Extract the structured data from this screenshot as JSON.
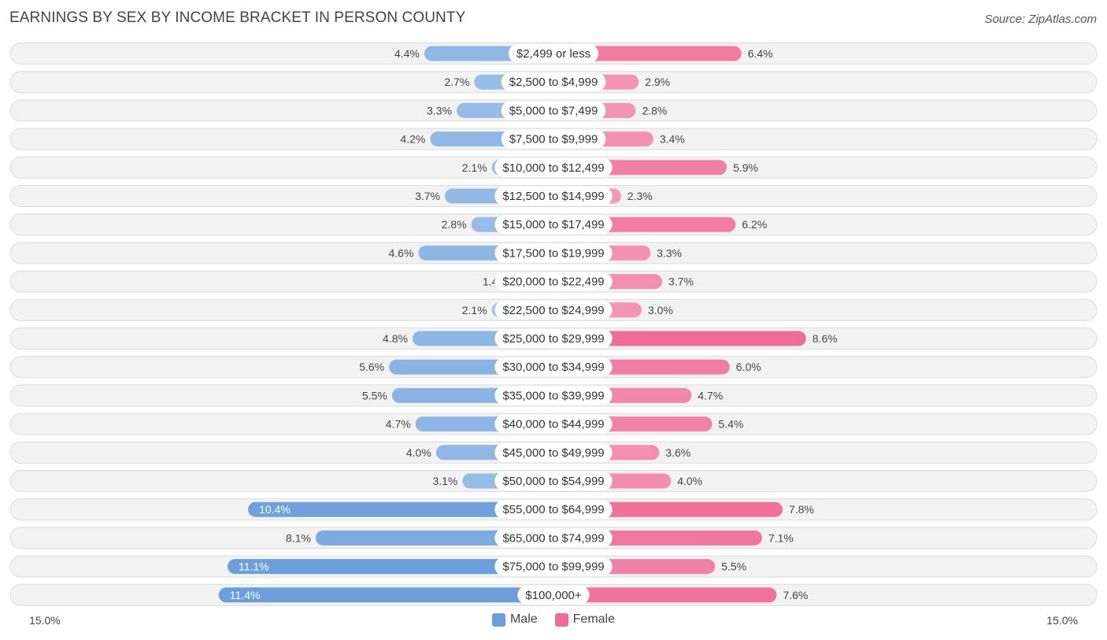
{
  "header": {
    "title": "EARNINGS BY SEX BY INCOME BRACKET IN PERSON COUNTY",
    "source": "Source: ZipAtlas.com"
  },
  "axis": {
    "left_label": "15.0%",
    "right_label": "15.0%"
  },
  "legend": {
    "male_label": "Male",
    "female_label": "Female"
  },
  "colors": {
    "male": "#6a9fdc",
    "male_light": "#a6c6ea",
    "female": "#f06b97",
    "female_light": "#f6a8c2"
  },
  "chart_data": {
    "type": "bar",
    "orientation": "horizontal-diverging",
    "title": "EARNINGS BY SEX BY INCOME BRACKET IN PERSON COUNTY",
    "xlim": [
      -15.0,
      15.0
    ],
    "unit": "%",
    "categories": [
      "$2,499 or less",
      "$2,500 to $4,999",
      "$5,000 to $7,499",
      "$7,500 to $9,999",
      "$10,000 to $12,499",
      "$12,500 to $14,999",
      "$15,000 to $17,499",
      "$17,500 to $19,999",
      "$20,000 to $22,499",
      "$22,500 to $24,999",
      "$25,000 to $29,999",
      "$30,000 to $34,999",
      "$35,000 to $39,999",
      "$40,000 to $44,999",
      "$45,000 to $49,999",
      "$50,000 to $54,999",
      "$55,000 to $64,999",
      "$65,000 to $74,999",
      "$75,000 to $99,999",
      "$100,000+"
    ],
    "series": [
      {
        "name": "Male",
        "values": [
          4.4,
          2.7,
          3.3,
          4.2,
          2.1,
          3.7,
          2.8,
          4.6,
          1.4,
          2.1,
          4.8,
          5.6,
          5.5,
          4.7,
          4.0,
          3.1,
          10.4,
          8.1,
          11.1,
          11.4
        ],
        "labels": [
          "4.4%",
          "2.7%",
          "3.3%",
          "4.2%",
          "2.1%",
          "3.7%",
          "2.8%",
          "4.6%",
          "1.4%",
          "2.1%",
          "4.8%",
          "5.6%",
          "5.5%",
          "4.7%",
          "4.0%",
          "3.1%",
          "10.4%",
          "8.1%",
          "11.1%",
          "11.4%"
        ]
      },
      {
        "name": "Female",
        "values": [
          6.4,
          2.9,
          2.8,
          3.4,
          5.9,
          2.3,
          6.2,
          3.3,
          3.7,
          3.0,
          8.6,
          6.0,
          4.7,
          5.4,
          3.6,
          4.0,
          7.8,
          7.1,
          5.5,
          7.6
        ],
        "labels": [
          "6.4%",
          "2.9%",
          "2.8%",
          "3.4%",
          "5.9%",
          "2.3%",
          "6.2%",
          "3.3%",
          "3.7%",
          "3.0%",
          "8.6%",
          "6.0%",
          "4.7%",
          "5.4%",
          "3.6%",
          "4.0%",
          "7.8%",
          "7.1%",
          "5.5%",
          "7.6%"
        ]
      }
    ],
    "legend": [
      "Male",
      "Female"
    ],
    "legend_position": "bottom-center"
  }
}
